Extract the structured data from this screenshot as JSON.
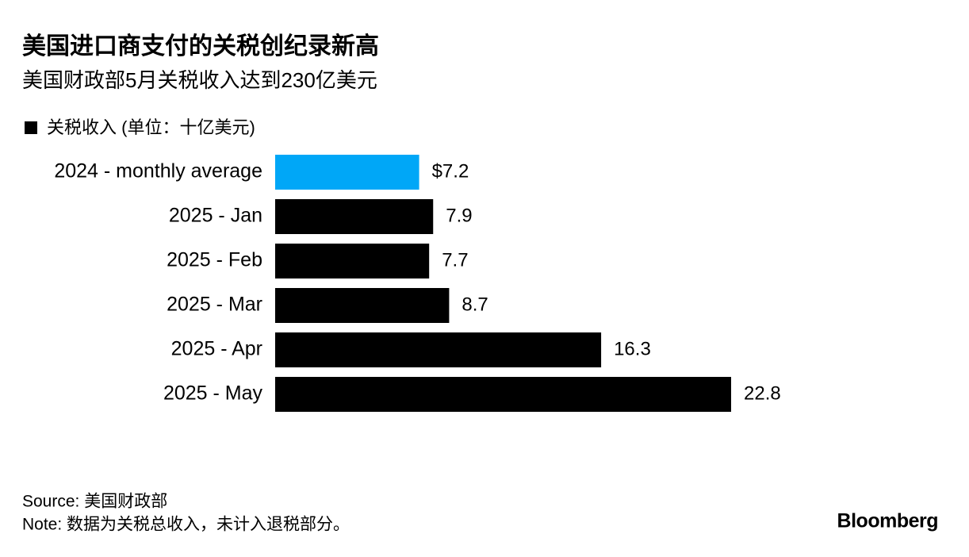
{
  "chart_data": {
    "type": "bar",
    "orientation": "horizontal",
    "title": "美国进口商支付的关税创纪录新高",
    "subtitle": "美国财政部5月关税收入达到230亿美元",
    "categories": [
      "2024 - monthly average",
      "2025 - Jan",
      "2025 - Feb",
      "2025 - Mar",
      "2025 - Apr",
      "2025 - May"
    ],
    "series": [
      {
        "name": "关税收入 (单位：十亿美元)",
        "color": "#000000",
        "values": [
          7.2,
          7.9,
          7.7,
          8.7,
          16.3,
          22.8
        ],
        "value_labels": [
          "$7.2",
          "7.9",
          "7.7",
          "8.7",
          "16.3",
          "22.8"
        ],
        "colors": [
          "#00a7f7",
          "#000000",
          "#000000",
          "#000000",
          "#000000",
          "#000000"
        ]
      }
    ],
    "source": "Source: 美国财政部",
    "note": "Note: 数据为关税总收入，未计入退税部分。",
    "brand": "Bloomberg"
  }
}
